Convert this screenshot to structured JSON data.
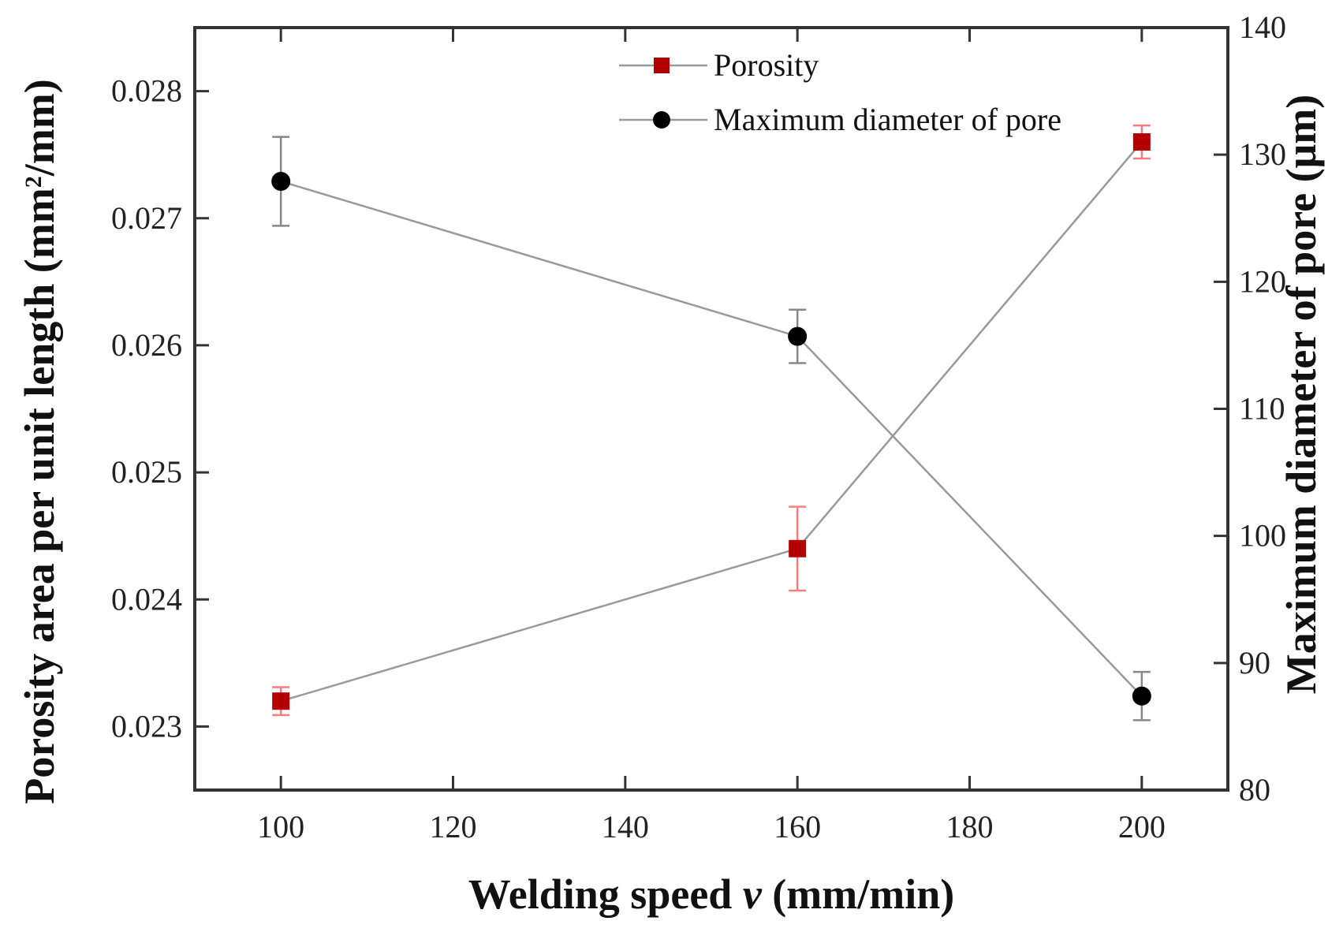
{
  "chart_data": {
    "type": "line",
    "title": "",
    "x": [
      100,
      160,
      200
    ],
    "xlabel": "Welding speed v (mm/min)",
    "xlabel_parts": {
      "before": "Welding speed ",
      "italic": "v",
      "after": " (mm/min)"
    },
    "xlim": [
      90,
      210
    ],
    "xticks": [
      100,
      120,
      140,
      160,
      180,
      200
    ],
    "ylabel_left": "Porosity area per unit length (mm²/mm)",
    "ylabel_left_parts": {
      "before": "Porosity area per unit length (mm",
      "sup": "2",
      "after": "/mm)"
    },
    "ylim_left": [
      0.0225,
      0.0285
    ],
    "yticks_left": [
      "0.023",
      "0.024",
      "0.025",
      "0.026",
      "0.027",
      "0.028"
    ],
    "ylabel_right": "Maximum diameter of pore (μm)",
    "ylim_right": [
      80,
      140
    ],
    "yticks_right": [
      "80",
      "90",
      "100",
      "110",
      "120",
      "130",
      "140"
    ],
    "series": [
      {
        "name": "Porosity",
        "axis": "left",
        "marker": "square",
        "color": "#b30000",
        "line_color": "#999999",
        "error_color": "#f08080",
        "values": [
          0.0232,
          0.0244,
          0.0276
        ],
        "errors": [
          0.00011,
          0.00033,
          0.00013
        ]
      },
      {
        "name": "Maximum diameter of pore",
        "axis": "right",
        "marker": "circle",
        "color": "#000000",
        "line_color": "#999999",
        "error_color": "#888888",
        "values": [
          127.9,
          115.7,
          87.4
        ],
        "errors": [
          3.5,
          2.1,
          1.9
        ]
      }
    ],
    "legend": {
      "position": "top-center",
      "entries": [
        "Porosity",
        "Maximum diameter of pore"
      ]
    }
  }
}
